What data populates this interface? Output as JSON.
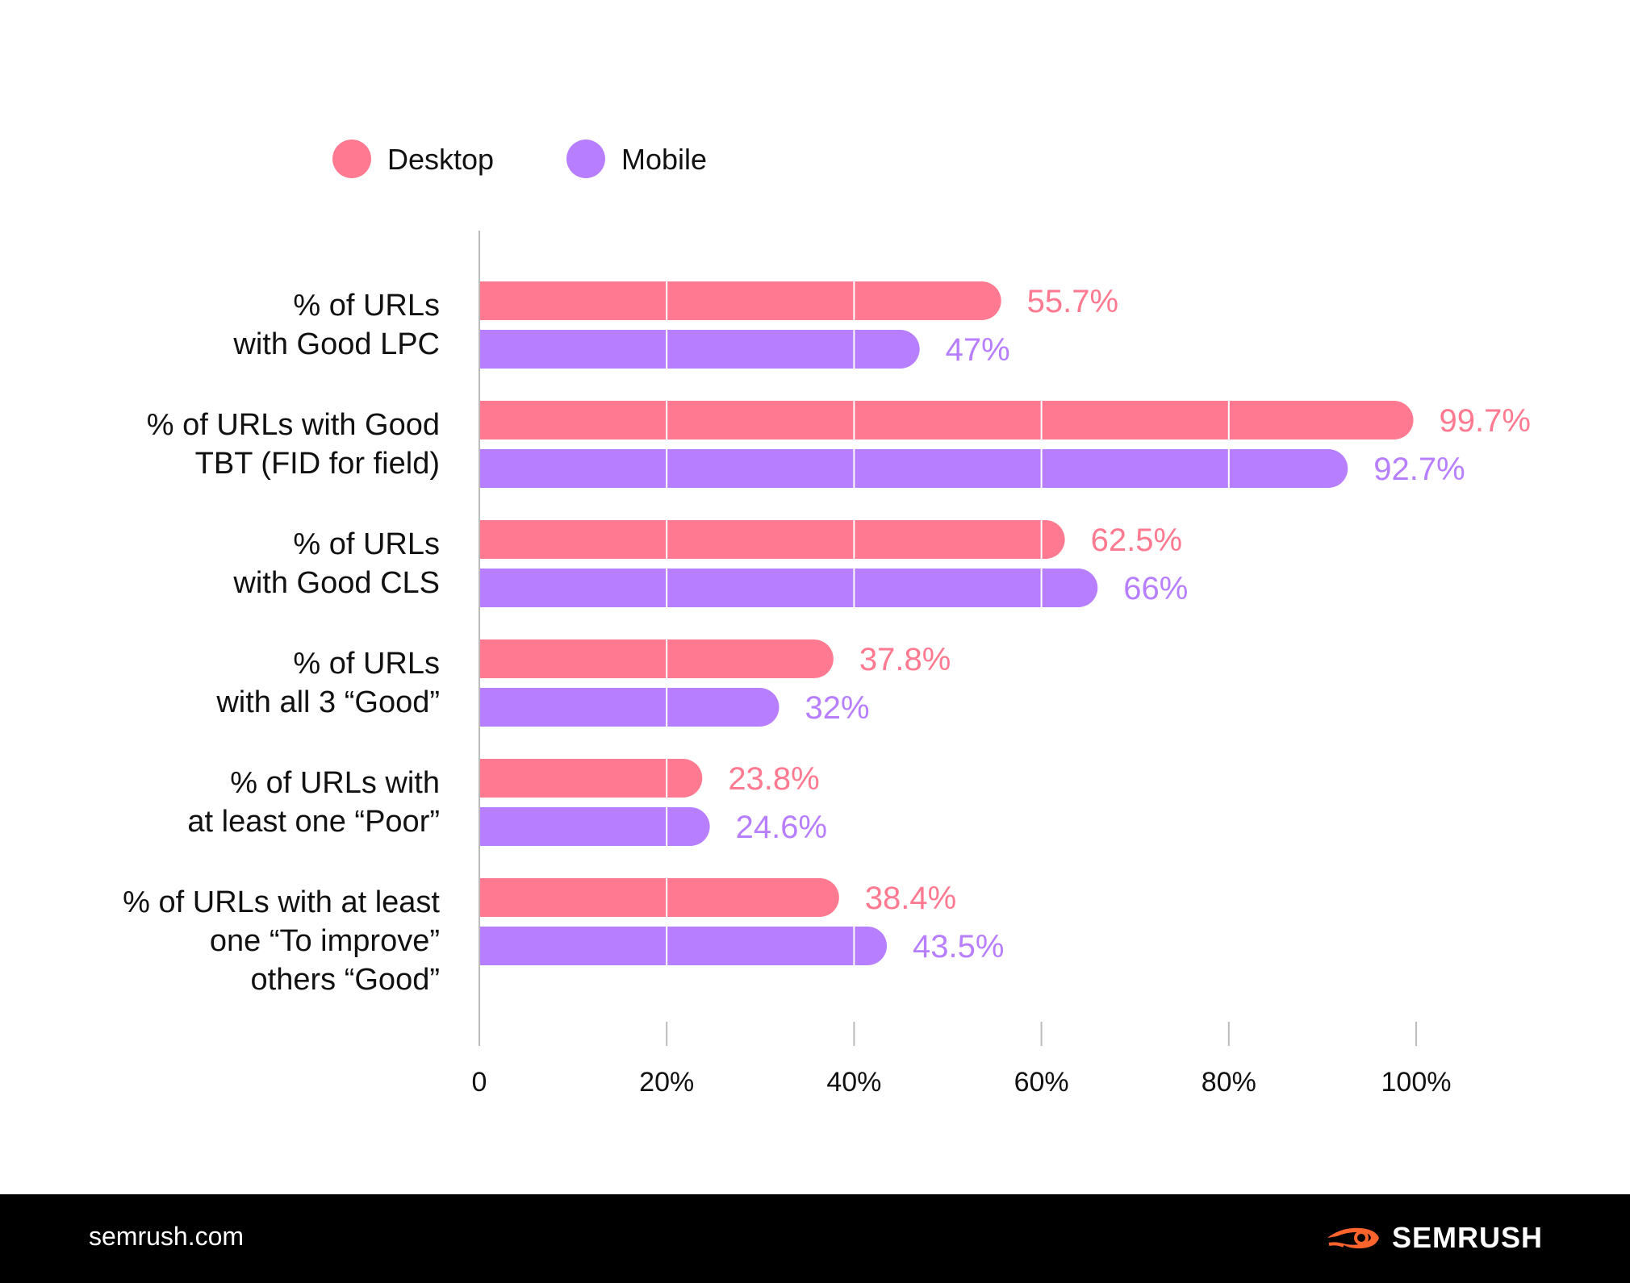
{
  "legend": [
    {
      "label": "Desktop",
      "color": "#ff7a90"
    },
    {
      "label": "Mobile",
      "color": "#b77fff"
    }
  ],
  "chart_data": {
    "type": "bar",
    "orientation": "horizontal",
    "categories": [
      [
        "% of URLs",
        "with Good LPC"
      ],
      [
        "% of URLs with Good",
        "TBT (FID for field)"
      ],
      [
        "% of URLs",
        "with Good CLS"
      ],
      [
        "% of URLs",
        "with all 3 “Good”"
      ],
      [
        "% of URLs with",
        "at least one “Poor”"
      ],
      [
        "% of URLs with at least",
        "one “To improve”",
        "others “Good”"
      ]
    ],
    "series": [
      {
        "name": "Desktop",
        "color": "#ff7a90",
        "values": [
          55.7,
          99.7,
          62.5,
          37.8,
          23.8,
          38.4
        ],
        "labels": [
          "55.7%",
          "99.7%",
          "62.5%",
          "37.8%",
          "23.8%",
          "38.4%"
        ]
      },
      {
        "name": "Mobile",
        "color": "#b77fff",
        "values": [
          47,
          92.7,
          66,
          32,
          24.6,
          43.5
        ],
        "labels": [
          "47%",
          "92.7%",
          "66%",
          "32%",
          "24.6%",
          "43.5%"
        ]
      }
    ],
    "x_ticks": [
      0,
      20,
      40,
      60,
      80,
      100
    ],
    "x_tick_labels": [
      "0",
      "20%",
      "40%",
      "60%",
      "80%",
      "100%"
    ],
    "xlim": [
      0,
      100
    ],
    "grid": true,
    "legend_position": "top-left"
  },
  "footer": {
    "url": "semrush.com",
    "brand": "SEMRUSH"
  }
}
